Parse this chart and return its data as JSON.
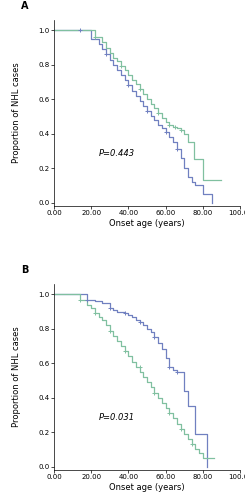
{
  "panel_A_label": "A",
  "panel_B_label": "B",
  "p_value_A": "P=0.443",
  "p_value_B": "P=0.031",
  "xlabel": "Onset age (years)",
  "ylabel": "Proportion of NHL cases",
  "xlim": [
    0,
    100
  ],
  "xticks": [
    0,
    20,
    40,
    60,
    80,
    100
  ],
  "xticklabels": [
    "0.00",
    "20.00",
    "40.00",
    "60.00",
    "80.00",
    "100.00"
  ],
  "yticks": [
    0.0,
    0.2,
    0.4,
    0.6,
    0.8,
    1.0
  ],
  "yticklabels": [
    "0.0",
    "0.2",
    "0.4",
    "0.6",
    "0.8",
    "1.0"
  ],
  "color_blue": "#7080c0",
  "color_green": "#80c0a0",
  "line_width": 0.9,
  "tick_fontsize": 5.0,
  "label_fontsize": 6.0,
  "p_fontsize": 6.0,
  "panel_label_fontsize": 7,
  "curve_A_blue_x": [
    0,
    14,
    20,
    24,
    26,
    28,
    30,
    32,
    34,
    36,
    38,
    40,
    42,
    44,
    46,
    48,
    50,
    52,
    54,
    56,
    58,
    60,
    62,
    64,
    66,
    68,
    70,
    72,
    74,
    76,
    80,
    85
  ],
  "curve_A_blue_y": [
    1.0,
    1.0,
    0.95,
    0.92,
    0.89,
    0.86,
    0.83,
    0.8,
    0.77,
    0.74,
    0.71,
    0.68,
    0.65,
    0.62,
    0.59,
    0.56,
    0.53,
    0.5,
    0.48,
    0.45,
    0.43,
    0.41,
    0.38,
    0.35,
    0.31,
    0.26,
    0.2,
    0.15,
    0.12,
    0.1,
    0.05,
    0.0
  ],
  "curve_A_green_x": [
    0,
    16,
    22,
    26,
    28,
    30,
    32,
    34,
    36,
    38,
    40,
    42,
    44,
    46,
    48,
    50,
    52,
    54,
    56,
    58,
    60,
    62,
    64,
    65,
    66,
    68,
    70,
    72,
    75,
    80,
    86,
    90
  ],
  "curve_A_green_y": [
    1.0,
    1.0,
    0.96,
    0.93,
    0.9,
    0.87,
    0.84,
    0.82,
    0.79,
    0.77,
    0.74,
    0.71,
    0.69,
    0.66,
    0.63,
    0.6,
    0.57,
    0.55,
    0.52,
    0.49,
    0.47,
    0.45,
    0.44,
    0.44,
    0.43,
    0.42,
    0.4,
    0.35,
    0.25,
    0.13,
    0.13,
    0.13
  ],
  "curve_B_blue_x": [
    0,
    14,
    18,
    26,
    30,
    34,
    36,
    38,
    40,
    42,
    44,
    46,
    48,
    50,
    52,
    54,
    56,
    58,
    60,
    62,
    64,
    66,
    68,
    70,
    72,
    76,
    80,
    82
  ],
  "curve_B_blue_y": [
    1.0,
    1.0,
    0.97,
    0.92,
    0.91,
    0.9,
    0.89,
    0.87,
    0.85,
    0.83,
    0.81,
    0.79,
    0.77,
    0.74,
    0.72,
    0.7,
    0.66,
    0.63,
    0.58,
    0.55,
    0.52,
    0.55,
    0.55,
    0.44,
    0.33,
    0.19,
    0.19,
    0.0
  ],
  "curve_B_green_x": [
    0,
    10,
    14,
    18,
    20,
    22,
    24,
    26,
    28,
    30,
    32,
    34,
    36,
    38,
    40,
    42,
    44,
    46,
    48,
    50,
    52,
    54,
    56,
    58,
    60,
    62,
    64,
    66,
    68,
    70,
    72,
    74,
    76,
    78,
    80,
    82,
    86
  ],
  "curve_B_green_y": [
    1.0,
    1.0,
    0.97,
    0.94,
    0.92,
    0.89,
    0.87,
    0.85,
    0.82,
    0.79,
    0.76,
    0.73,
    0.7,
    0.67,
    0.64,
    0.61,
    0.58,
    0.55,
    0.52,
    0.49,
    0.46,
    0.43,
    0.4,
    0.37,
    0.34,
    0.31,
    0.28,
    0.25,
    0.22,
    0.19,
    0.16,
    0.13,
    0.1,
    0.08,
    0.05,
    0.05,
    0.05
  ],
  "censor_A_blue_x": [
    14,
    28,
    40,
    50,
    60,
    66
  ],
  "censor_A_blue_y": [
    1.0,
    0.86,
    0.68,
    0.53,
    0.41,
    0.31
  ],
  "censor_A_green_x": [
    22,
    36,
    46,
    56,
    62,
    65,
    68
  ],
  "censor_A_green_y": [
    0.96,
    0.79,
    0.66,
    0.52,
    0.45,
    0.44,
    0.42
  ],
  "censor_B_blue_x": [
    18,
    30,
    38,
    46,
    54,
    62,
    66
  ],
  "censor_B_blue_y": [
    0.97,
    0.91,
    0.87,
    0.79,
    0.7,
    0.55,
    0.55
  ],
  "censor_B_green_x": [
    14,
    22,
    30,
    38,
    46,
    54,
    62,
    68,
    74
  ],
  "censor_B_green_y": [
    0.97,
    0.89,
    0.79,
    0.67,
    0.58,
    0.43,
    0.31,
    0.22,
    0.13
  ]
}
